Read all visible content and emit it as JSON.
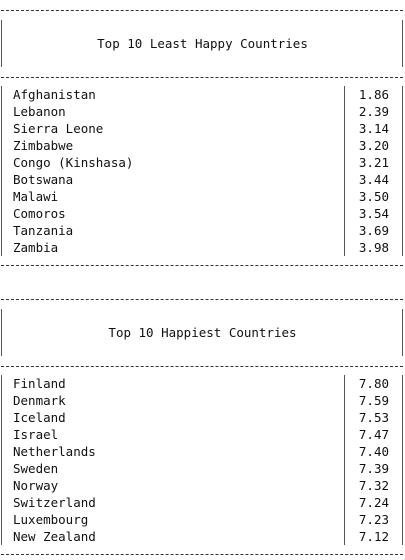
{
  "tables": [
    {
      "title": "Top 10 Least Happy Countries",
      "rows": [
        {
          "country": "Afghanistan",
          "score": "1.86"
        },
        {
          "country": "Lebanon",
          "score": "2.39"
        },
        {
          "country": "Sierra Leone",
          "score": "3.14"
        },
        {
          "country": "Zimbabwe",
          "score": "3.20"
        },
        {
          "country": "Congo (Kinshasa)",
          "score": "3.21"
        },
        {
          "country": "Botswana",
          "score": "3.44"
        },
        {
          "country": "Malawi",
          "score": "3.50"
        },
        {
          "country": "Comoros",
          "score": "3.54"
        },
        {
          "country": "Tanzania",
          "score": "3.69"
        },
        {
          "country": "Zambia",
          "score": "3.98"
        }
      ]
    },
    {
      "title": "Top 10 Happiest Countries",
      "rows": [
        {
          "country": "Finland",
          "score": "7.80"
        },
        {
          "country": "Denmark",
          "score": "7.59"
        },
        {
          "country": "Iceland",
          "score": "7.53"
        },
        {
          "country": "Israel",
          "score": "7.47"
        },
        {
          "country": "Netherlands",
          "score": "7.40"
        },
        {
          "country": "Sweden",
          "score": "7.39"
        },
        {
          "country": "Norway",
          "score": "7.32"
        },
        {
          "country": "Switzerland",
          "score": "7.24"
        },
        {
          "country": "Luxembourg",
          "score": "7.23"
        },
        {
          "country": "New Zealand",
          "score": "7.12"
        }
      ]
    }
  ]
}
